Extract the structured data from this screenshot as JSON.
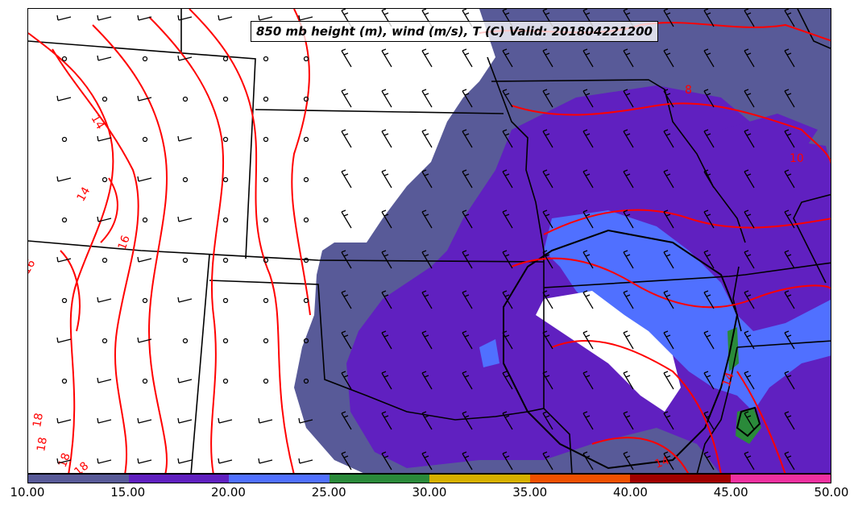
{
  "title": "850 mb height (m), wind (m/s), T (C) Valid: 201804221200",
  "colorbar": {
    "labels": [
      "10.00",
      "15.00",
      "20.00",
      "25.00",
      "30.00",
      "35.00",
      "40.00",
      "45.00",
      "50.00"
    ],
    "colors": [
      "#585a98",
      "#6020c0",
      "#5070ff",
      "#2a8a3a",
      "#d6b000",
      "#f05000",
      "#a00000",
      "#f030a0"
    ]
  },
  "contour_labels": [
    "14",
    "14",
    "16",
    "18",
    "18",
    "14",
    "16",
    "18",
    "18",
    "8",
    "10",
    "14"
  ],
  "colors": {
    "temperature_contour": "#ff0000",
    "height_contour": "#000000",
    "borders": "#000000",
    "wind_barbs": "#000000"
  }
}
